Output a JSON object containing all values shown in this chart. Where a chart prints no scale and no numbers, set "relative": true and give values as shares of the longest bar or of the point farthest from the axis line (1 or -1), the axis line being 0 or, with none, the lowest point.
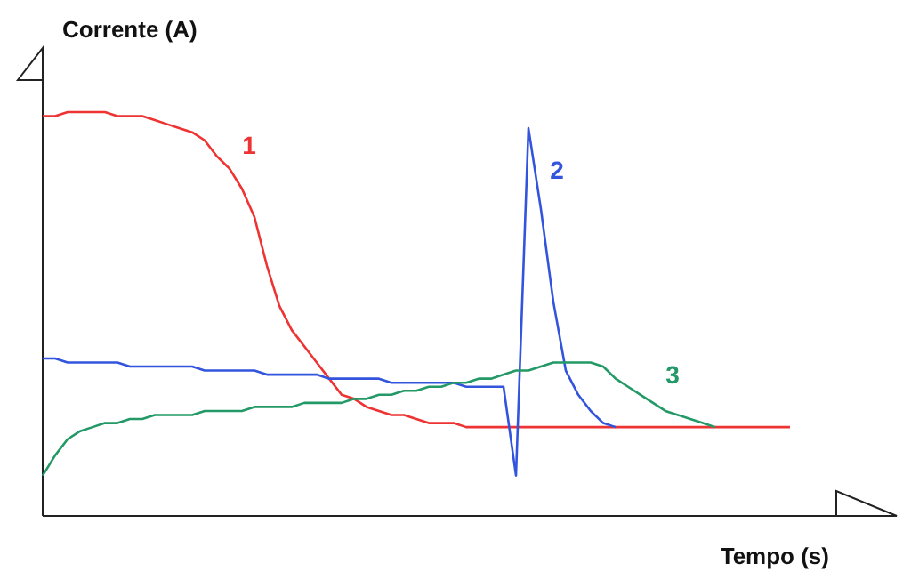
{
  "chart_data": {
    "type": "line",
    "xlabel": "Tempo (s)",
    "ylabel": "Corrente (A)",
    "relative": true,
    "line_style": "solid",
    "categories": [
      null,
      null,
      null,
      null,
      null,
      null,
      null,
      null,
      null,
      null,
      null,
      null,
      null,
      null,
      null,
      null,
      null,
      null,
      null,
      null,
      null,
      null,
      null,
      null,
      null,
      null,
      null,
      null,
      null,
      null,
      null,
      null,
      null,
      null,
      null,
      null,
      null,
      null,
      null,
      null,
      null,
      null,
      null,
      null,
      null,
      null,
      null,
      null,
      null,
      null,
      null,
      null,
      null,
      null,
      null,
      null,
      null,
      null,
      null,
      null,
      null
    ],
    "series": [
      {
        "name": "1",
        "color": "#ee3333",
        "values": [
          0.99,
          0.99,
          1.0,
          1.0,
          1.0,
          1.0,
          0.99,
          0.99,
          0.99,
          0.98,
          0.97,
          0.96,
          0.95,
          0.93,
          0.89,
          0.86,
          0.81,
          0.74,
          0.62,
          0.52,
          0.46,
          0.42,
          0.38,
          0.34,
          0.3,
          0.29,
          0.27,
          0.26,
          0.25,
          0.25,
          0.24,
          0.23,
          0.23,
          0.23,
          0.22,
          0.22,
          0.22,
          0.22,
          0.22,
          0.22,
          0.22,
          0.22,
          0.22,
          0.22,
          0.22,
          0.22,
          0.22,
          0.22,
          0.22,
          0.22,
          0.22,
          0.22,
          0.22,
          0.22,
          0.22,
          0.22,
          0.22,
          0.22,
          0.22,
          0.22,
          0.22
        ]
      },
      {
        "name": "2",
        "color": "#3355dd",
        "values": [
          0.39,
          0.39,
          0.38,
          0.38,
          0.38,
          0.38,
          0.38,
          0.37,
          0.37,
          0.37,
          0.37,
          0.37,
          0.37,
          0.36,
          0.36,
          0.36,
          0.36,
          0.36,
          0.35,
          0.35,
          0.35,
          0.35,
          0.35,
          0.34,
          0.34,
          0.34,
          0.34,
          0.34,
          0.33,
          0.33,
          0.33,
          0.33,
          0.33,
          0.33,
          0.32,
          0.32,
          0.32,
          0.32,
          0.1,
          0.96,
          0.76,
          0.53,
          0.36,
          0.3,
          0.26,
          0.23,
          0.22,
          null,
          null,
          null,
          null,
          null,
          null,
          null,
          null,
          null,
          null,
          null,
          null,
          null,
          null
        ]
      },
      {
        "name": "3",
        "color": "#229966",
        "values": [
          0.1,
          0.15,
          0.19,
          0.21,
          0.22,
          0.23,
          0.23,
          0.24,
          0.24,
          0.25,
          0.25,
          0.25,
          0.25,
          0.26,
          0.26,
          0.26,
          0.26,
          0.27,
          0.27,
          0.27,
          0.27,
          0.28,
          0.28,
          0.28,
          0.28,
          0.29,
          0.29,
          0.3,
          0.3,
          0.31,
          0.31,
          0.32,
          0.32,
          0.33,
          0.33,
          0.34,
          0.34,
          0.35,
          0.36,
          0.36,
          0.37,
          0.38,
          0.38,
          0.38,
          0.38,
          0.37,
          0.34,
          0.32,
          0.3,
          0.28,
          0.26,
          0.25,
          0.24,
          0.23,
          0.22,
          null,
          null,
          null,
          null,
          null,
          null
        ]
      }
    ]
  }
}
